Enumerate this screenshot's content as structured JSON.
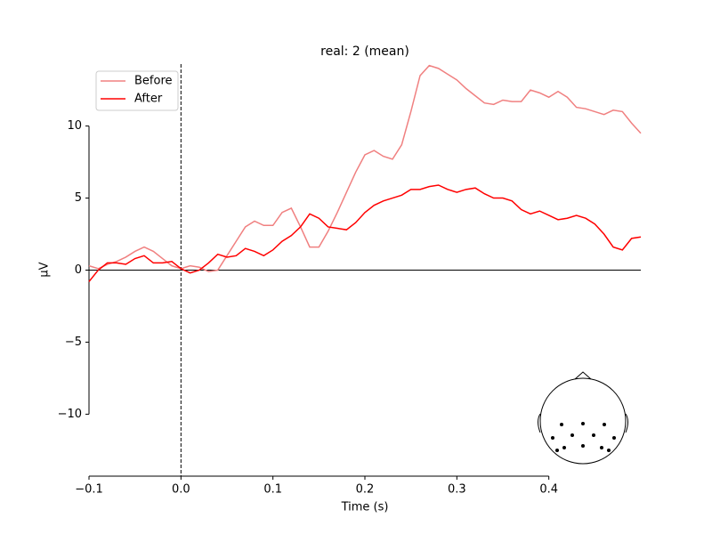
{
  "chart_data": {
    "type": "line",
    "title": "real: 2 (mean)",
    "xlabel": "Time (s)",
    "ylabel": "µV",
    "x": [
      -0.1,
      -0.09,
      -0.08,
      -0.07,
      -0.06,
      -0.05,
      -0.04,
      -0.03,
      -0.02,
      -0.01,
      0,
      0.01,
      0.02,
      0.03,
      0.04,
      0.05,
      0.06,
      0.07,
      0.08,
      0.09,
      0.1,
      0.11,
      0.12,
      0.13,
      0.14,
      0.15,
      0.16,
      0.17,
      0.18,
      0.19,
      0.2,
      0.21,
      0.22,
      0.23,
      0.24,
      0.25,
      0.26,
      0.27,
      0.28,
      0.29,
      0.3,
      0.31,
      0.32,
      0.33,
      0.34,
      0.35,
      0.36,
      0.37,
      0.38,
      0.39,
      0.4,
      0.41,
      0.42,
      0.43,
      0.44,
      0.45,
      0.46,
      0.47,
      0.48,
      0.49,
      0.5
    ],
    "series": [
      {
        "name": "Before",
        "color": "#f08080",
        "values": [
          0.3,
          0.1,
          0.4,
          0.6,
          0.9,
          1.3,
          1.6,
          1.3,
          0.8,
          0.3,
          0.1,
          0.3,
          0.2,
          -0.1,
          0.0,
          1.0,
          2.0,
          3.0,
          3.4,
          3.1,
          3.1,
          4.0,
          4.3,
          3.0,
          1.6,
          1.6,
          2.7,
          4.0,
          5.4,
          6.8,
          8.0,
          8.3,
          7.9,
          7.7,
          8.7,
          11.0,
          13.5,
          14.2,
          14.0,
          13.6,
          13.2,
          12.6,
          12.1,
          11.6,
          11.5,
          11.8,
          11.7,
          11.7,
          12.5,
          12.3,
          12.0,
          12.4,
          12.0,
          11.3,
          11.2,
          11.0,
          10.8,
          11.1,
          11.0,
          10.2,
          9.5
        ]
      },
      {
        "name": "After",
        "color": "#ff0000",
        "values": [
          -0.8,
          0.0,
          0.5,
          0.5,
          0.4,
          0.8,
          1.0,
          0.5,
          0.5,
          0.6,
          0.1,
          -0.2,
          0.0,
          0.5,
          1.1,
          0.9,
          1.0,
          1.5,
          1.3,
          1.0,
          1.4,
          2.0,
          2.4,
          3.0,
          3.9,
          3.6,
          3.0,
          2.9,
          2.8,
          3.3,
          4.0,
          4.5,
          4.8,
          5.0,
          5.2,
          5.6,
          5.6,
          5.8,
          5.9,
          5.6,
          5.4,
          5.6,
          5.7,
          5.3,
          5.0,
          5.0,
          4.8,
          4.2,
          3.9,
          4.1,
          3.8,
          3.5,
          3.6,
          3.8,
          3.6,
          3.2,
          2.5,
          1.6,
          1.4,
          2.2,
          2.3
        ]
      }
    ],
    "xlim": [
      -0.1,
      0.5
    ],
    "ylim": [
      -14.3,
      14.3
    ],
    "xticks": [
      {
        "value": -0.1,
        "label": "−0.1"
      },
      {
        "value": 0,
        "label": "0.0"
      },
      0.1,
      0.2,
      0.3,
      0.4
    ],
    "yticks": [
      {
        "value": -10,
        "label": "−10"
      },
      {
        "value": -5,
        "label": "−5"
      },
      0,
      5,
      10
    ],
    "legend": "upper left"
  }
}
